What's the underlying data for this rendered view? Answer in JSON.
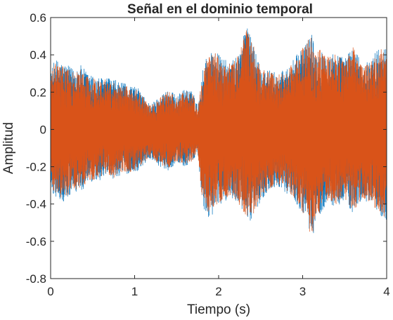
{
  "chart_data": {
    "type": "line",
    "title": "Señal en el dominio temporal",
    "xlabel": "Tiempo (s)",
    "ylabel": "Amplitud",
    "xlim": [
      0,
      4
    ],
    "ylim": [
      -0.8,
      0.6
    ],
    "xticks": [
      0,
      1,
      2,
      3,
      4
    ],
    "xtick_labels": [
      "0",
      "1",
      "2",
      "3",
      "4"
    ],
    "yticks": [
      -0.8,
      -0.6,
      -0.4,
      -0.2,
      0,
      0.2,
      0.4,
      0.6
    ],
    "ytick_labels": [
      "-0.8",
      "-0.6",
      "-0.4",
      "-0.2",
      "0",
      "0.2",
      "0.4",
      "0.6"
    ],
    "grid": false,
    "legend": "none",
    "series": [
      {
        "color": "#0072BD",
        "envelope": {
          "t": [
            0.0,
            0.05,
            0.15,
            0.25,
            0.35,
            0.45,
            0.55,
            0.65,
            0.75,
            0.85,
            0.95,
            1.05,
            1.15,
            1.2,
            1.3,
            1.4,
            1.5,
            1.6,
            1.7,
            1.75,
            1.8,
            1.85,
            1.95,
            2.05,
            2.15,
            2.25,
            2.32,
            2.4,
            2.5,
            2.6,
            2.7,
            2.8,
            2.9,
            3.0,
            3.05,
            3.1,
            3.15,
            3.2,
            3.3,
            3.4,
            3.5,
            3.6,
            3.7,
            3.8,
            3.9,
            4.0
          ],
          "upper": [
            0.3,
            0.38,
            0.36,
            0.33,
            0.35,
            0.3,
            0.28,
            0.28,
            0.27,
            0.25,
            0.24,
            0.22,
            0.15,
            0.14,
            0.18,
            0.22,
            0.18,
            0.22,
            0.2,
            0.12,
            0.3,
            0.4,
            0.43,
            0.38,
            0.36,
            0.42,
            0.57,
            0.48,
            0.34,
            0.32,
            0.3,
            0.33,
            0.38,
            0.45,
            0.47,
            0.55,
            0.42,
            0.44,
            0.4,
            0.42,
            0.38,
            0.46,
            0.35,
            0.37,
            0.44,
            0.44
          ],
          "lower": [
            -0.33,
            -0.36,
            -0.4,
            -0.35,
            -0.34,
            -0.3,
            -0.28,
            -0.26,
            -0.27,
            -0.24,
            -0.24,
            -0.22,
            -0.17,
            -0.16,
            -0.2,
            -0.22,
            -0.18,
            -0.2,
            -0.18,
            -0.12,
            -0.38,
            -0.48,
            -0.45,
            -0.4,
            -0.36,
            -0.42,
            -0.48,
            -0.5,
            -0.38,
            -0.33,
            -0.3,
            -0.34,
            -0.38,
            -0.46,
            -0.45,
            -0.64,
            -0.5,
            -0.46,
            -0.4,
            -0.42,
            -0.38,
            -0.46,
            -0.38,
            -0.4,
            -0.45,
            -0.5
          ]
        }
      },
      {
        "color": "#D95319",
        "envelope": {
          "t": [
            0.0,
            0.05,
            0.15,
            0.25,
            0.35,
            0.45,
            0.55,
            0.65,
            0.75,
            0.85,
            0.95,
            1.05,
            1.15,
            1.2,
            1.3,
            1.4,
            1.5,
            1.6,
            1.7,
            1.75,
            1.8,
            1.85,
            1.95,
            2.05,
            2.15,
            2.25,
            2.32,
            2.4,
            2.5,
            2.6,
            2.7,
            2.8,
            2.9,
            3.0,
            3.05,
            3.1,
            3.15,
            3.2,
            3.3,
            3.4,
            3.5,
            3.6,
            3.7,
            3.8,
            3.9,
            4.0
          ],
          "upper": [
            0.28,
            0.36,
            0.34,
            0.31,
            0.33,
            0.28,
            0.27,
            0.27,
            0.26,
            0.24,
            0.23,
            0.21,
            0.14,
            0.13,
            0.17,
            0.21,
            0.17,
            0.21,
            0.19,
            0.11,
            0.28,
            0.38,
            0.42,
            0.36,
            0.35,
            0.41,
            0.55,
            0.47,
            0.33,
            0.31,
            0.29,
            0.32,
            0.37,
            0.44,
            0.46,
            0.53,
            0.41,
            0.43,
            0.39,
            0.41,
            0.37,
            0.45,
            0.34,
            0.36,
            0.43,
            0.43
          ],
          "lower": [
            -0.3,
            -0.34,
            -0.38,
            -0.33,
            -0.32,
            -0.28,
            -0.27,
            -0.25,
            -0.26,
            -0.23,
            -0.23,
            -0.21,
            -0.16,
            -0.15,
            -0.19,
            -0.21,
            -0.17,
            -0.19,
            -0.17,
            -0.11,
            -0.36,
            -0.46,
            -0.43,
            -0.38,
            -0.35,
            -0.41,
            -0.46,
            -0.48,
            -0.36,
            -0.32,
            -0.29,
            -0.33,
            -0.37,
            -0.45,
            -0.44,
            -0.62,
            -0.48,
            -0.45,
            -0.39,
            -0.41,
            -0.37,
            -0.45,
            -0.37,
            -0.39,
            -0.44,
            -0.48
          ]
        }
      }
    ]
  }
}
